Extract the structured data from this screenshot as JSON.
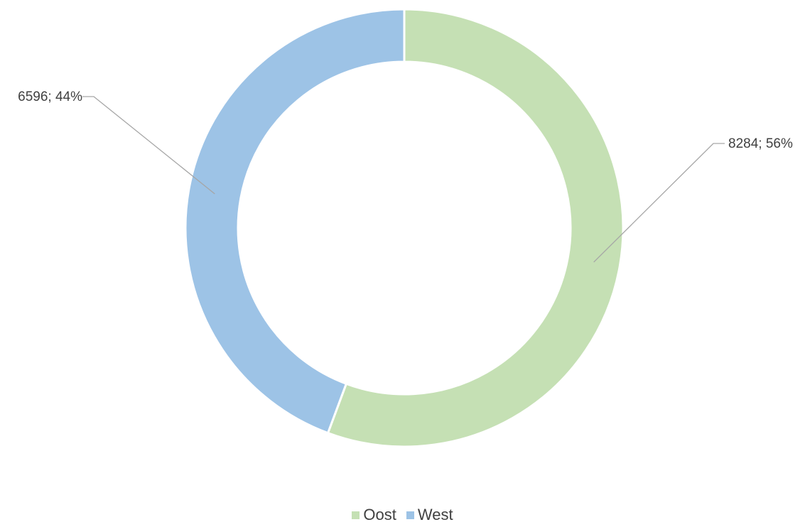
{
  "chart_data": {
    "type": "pie",
    "variant": "doughnut",
    "categories": [
      "Oost",
      "West"
    ],
    "values": [
      8284,
      6596
    ],
    "percentages": [
      "56%",
      "44%"
    ],
    "data_labels": [
      "8284; 56%",
      "6596; 44%"
    ],
    "colors": [
      "#c5e0b4",
      "#9dc3e6"
    ],
    "title": "",
    "legend_position": "bottom"
  },
  "legend": {
    "items": [
      {
        "label": "Oost",
        "color": "#c5e0b4"
      },
      {
        "label": "West",
        "color": "#9dc3e6"
      }
    ]
  }
}
